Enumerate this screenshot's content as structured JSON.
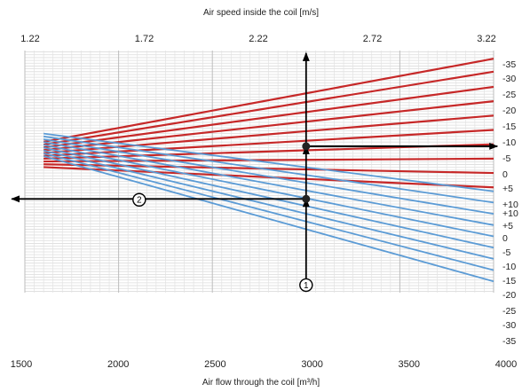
{
  "chart_data": {
    "type": "line",
    "top_axis": {
      "label": "Air speed inside the coil [m/s]",
      "ticks": [
        "1.22",
        "1.72",
        "2.22",
        "2.72",
        "3.22"
      ],
      "range": [
        1.22,
        3.22
      ]
    },
    "bottom_axis": {
      "label": "Air flow  through the coil [m³/h]",
      "ticks": [
        "1500",
        "2000",
        "2500",
        "3000",
        "3500",
        "4000"
      ],
      "range": [
        1500,
        4000
      ]
    },
    "right_axis_labels": [
      "-35",
      "-30",
      "-25",
      "-20",
      "-15",
      "-10",
      "-5",
      "0",
      "+5",
      "+10",
      "+10",
      "+5",
      "0",
      "-5",
      "-10",
      "-15",
      "-20",
      "-25",
      "-30",
      "-35"
    ],
    "grid": true,
    "series": [
      {
        "group": "red",
        "color": "#c62828",
        "x": [
          1600,
          4000
        ],
        "y": [
          -6.1,
          -35.6
        ]
      },
      {
        "group": "red",
        "color": "#c62828",
        "x": [
          1600,
          4000
        ],
        "y": [
          -5.1,
          -31.0
        ]
      },
      {
        "group": "red",
        "color": "#c62828",
        "x": [
          1600,
          4000
        ],
        "y": [
          -4.1,
          -25.6
        ]
      },
      {
        "group": "red",
        "color": "#c62828",
        "x": [
          1600,
          4000
        ],
        "y": [
          -3.1,
          -20.5
        ]
      },
      {
        "group": "red",
        "color": "#c62828",
        "x": [
          1600,
          4000
        ],
        "y": [
          -2.1,
          -15.4
        ]
      },
      {
        "group": "red",
        "color": "#c62828",
        "x": [
          1600,
          4000
        ],
        "y": [
          -1.1,
          -10.3
        ]
      },
      {
        "group": "red",
        "color": "#c62828",
        "x": [
          1600,
          4000
        ],
        "y": [
          -0.1,
          -5.2
        ]
      },
      {
        "group": "red",
        "color": "#c62828",
        "x": [
          1600,
          4000
        ],
        "y": [
          0.9,
          -0.1
        ]
      },
      {
        "group": "red",
        "color": "#c62828",
        "x": [
          1600,
          4000
        ],
        "y": [
          1.9,
          5.0
        ]
      },
      {
        "group": "red",
        "color": "#c62828",
        "x": [
          1600,
          4000
        ],
        "y": [
          2.9,
          10.1
        ]
      },
      {
        "group": "blue",
        "color": "#5b9bd5",
        "x": [
          1600,
          4000
        ],
        "y": [
          -9.0,
          11.5
        ]
      },
      {
        "group": "blue",
        "color": "#5b9bd5",
        "x": [
          1600,
          4000
        ],
        "y": [
          -8.0,
          15.5
        ]
      },
      {
        "group": "blue",
        "color": "#5b9bd5",
        "x": [
          1600,
          4000
        ],
        "y": [
          -7.0,
          19.5
        ]
      },
      {
        "group": "blue",
        "color": "#5b9bd5",
        "x": [
          1600,
          4000
        ],
        "y": [
          -6.0,
          23.5
        ]
      },
      {
        "group": "blue",
        "color": "#5b9bd5",
        "x": [
          1600,
          4000
        ],
        "y": [
          -5.0,
          27.5
        ]
      },
      {
        "group": "blue",
        "color": "#5b9bd5",
        "x": [
          1600,
          4000
        ],
        "y": [
          -4.0,
          31.5
        ]
      },
      {
        "group": "blue",
        "color": "#5b9bd5",
        "x": [
          1600,
          4000
        ],
        "y": [
          -3.0,
          35.5
        ]
      },
      {
        "group": "blue",
        "color": "#5b9bd5",
        "x": [
          1600,
          4000
        ],
        "y": [
          -2.0,
          39.5
        ]
      },
      {
        "group": "blue",
        "color": "#5b9bd5",
        "x": [
          1600,
          4000
        ],
        "y": [
          -1.0,
          43.5
        ]
      }
    ],
    "y_range": [
      -38.5,
      47.5
    ],
    "x_range": [
      1500,
      4000
    ],
    "markers": [
      {
        "id": "1",
        "label": "1",
        "x": 3000,
        "y": 44.8
      },
      {
        "id": "2",
        "label": "2",
        "x": 2110,
        "y": 14.5
      }
    ],
    "points": [
      {
        "x": 3000,
        "y": -4.5
      },
      {
        "x": 3000,
        "y": 14.2
      }
    ],
    "arrows": [
      {
        "from": [
          3000,
          44.8
        ],
        "to": [
          3000,
          14.2
        ]
      },
      {
        "from": [
          3000,
          14.2
        ],
        "to": [
          3000,
          -4.5
        ]
      },
      {
        "from": [
          3000,
          -4.5
        ],
        "to": [
          3000,
          -37.6
        ]
      },
      {
        "from": [
          3000,
          -4.5
        ],
        "to": [
          4020,
          -4.5
        ]
      },
      {
        "from": [
          3000,
          14.2
        ],
        "to": [
          1430,
          14.2
        ]
      }
    ]
  }
}
